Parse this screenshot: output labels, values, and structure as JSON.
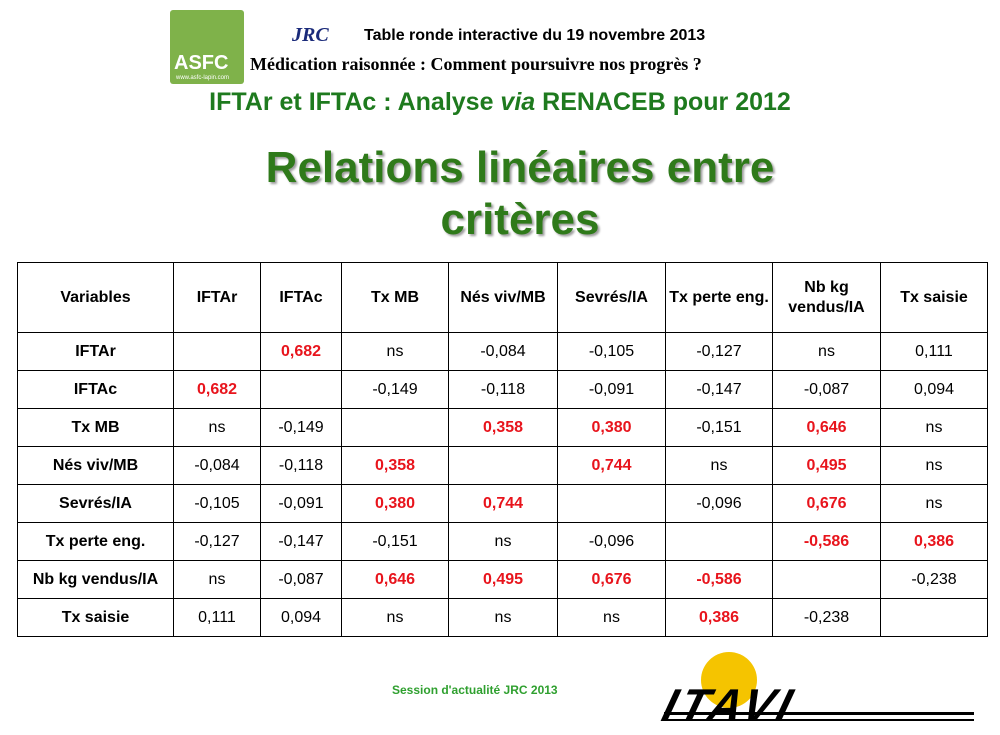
{
  "header": {
    "logo_asfc": "ASFC",
    "logo_asfc_url": "www.asfc-lapin.com",
    "logo_jrc": "JRC",
    "event": "Table ronde interactive du 19 novembre 2013",
    "subtitle": "Médication raisonnée : Comment poursuivre nos progrès ?",
    "analysis_parts": [
      "IFTAr et IFTAc : Analyse ",
      "via",
      " RENACEB pour 2012"
    ]
  },
  "title": "Relations linéaires entre critères",
  "table": {
    "columns": [
      "Variables",
      "IFTAr",
      "IFTAc",
      "Tx MB",
      "Nés viv/MB",
      "Sevrés/IA",
      "Tx perte eng.",
      "Nb kg vendus/IA",
      "Tx saisie"
    ],
    "rows": [
      [
        "IFTAr",
        null,
        "0,682",
        "ns",
        "-0,084",
        "-0,105",
        "-0,127",
        "ns",
        "0,111"
      ],
      [
        "IFTAc",
        "0,682",
        null,
        "-0,149",
        "-0,118",
        "-0,091",
        "-0,147",
        "-0,087",
        "0,094"
      ],
      [
        "Tx MB",
        "ns",
        "-0,149",
        null,
        "0,358",
        "0,380",
        "-0,151",
        "0,646",
        "ns"
      ],
      [
        "Nés viv/MB",
        "-0,084",
        "-0,118",
        "0,358",
        null,
        "0,744",
        "ns",
        "0,495",
        "ns"
      ],
      [
        "Sevrés/IA",
        "-0,105",
        "-0,091",
        "0,380",
        "0,744",
        null,
        "-0,096",
        "0,676",
        "ns"
      ],
      [
        "Tx perte eng.",
        "-0,127",
        "-0,147",
        "-0,151",
        "ns",
        "-0,096",
        null,
        "-0,586",
        "0,386"
      ],
      [
        "Nb kg vendus/IA",
        "ns",
        "-0,087",
        "0,646",
        "0,495",
        "0,676",
        "-0,586",
        null,
        "-0,238"
      ],
      [
        "Tx saisie",
        "0,111",
        "0,094",
        "ns",
        "ns",
        "ns",
        "0,386",
        "-0,238",
        null
      ]
    ]
  },
  "footer": {
    "session": "Session d'actualité JRC 2013",
    "logo_itavi": "ITAVI"
  }
}
